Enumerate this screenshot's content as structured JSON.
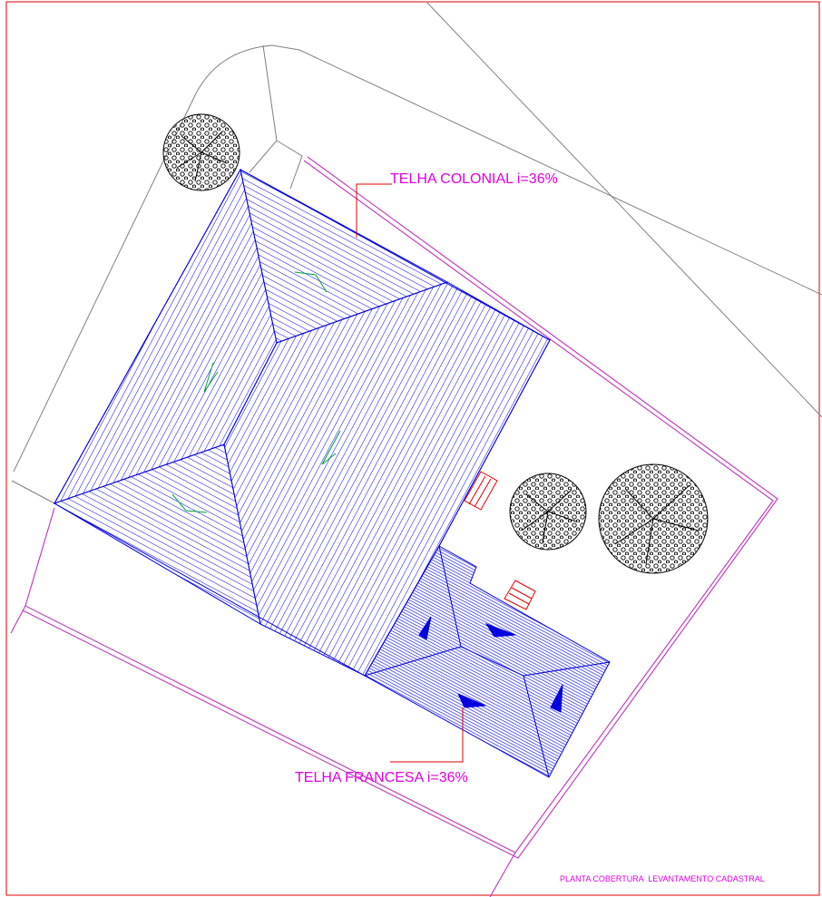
{
  "annotations": [
    {
      "label": "TELHA COLONIAL i=36%"
    },
    {
      "label": "TELHA FRANCESA i=36%"
    }
  ],
  "title_block": {
    "label": "PLANTA COBERTURA  LEVANTAMENTO CADASTRAL"
  }
}
